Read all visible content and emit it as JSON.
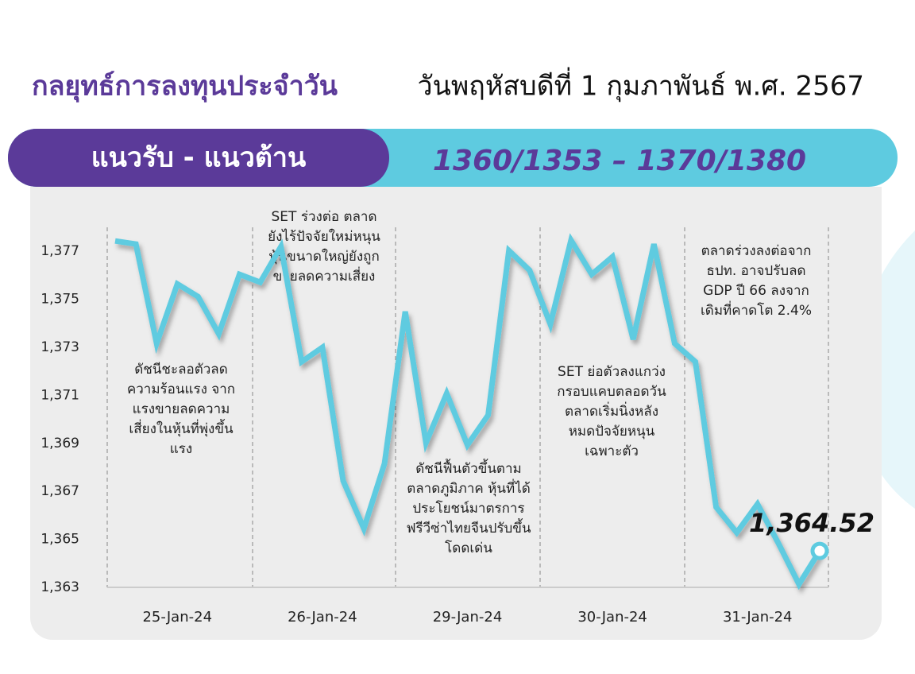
{
  "header": {
    "title": "กลยุทธ์การลงทุนประจำวัน",
    "date": "วันพฤหัสบดีที่ 1 กุมภาพันธ์ พ.ศ. 2567"
  },
  "banner": {
    "label": "แนวรับ - แนวต้าน",
    "levels": "1360/1353 – 1370/1380"
  },
  "chart_data": {
    "type": "line",
    "categories": [
      null,
      null,
      null,
      "25-Jan-24",
      null,
      null,
      null,
      null,
      null,
      null,
      "26-Jan-24",
      null,
      null,
      null,
      null,
      null,
      null,
      "29-Jan-24",
      null,
      null,
      null,
      null,
      null,
      null,
      "30-Jan-24",
      null,
      null,
      null,
      null,
      null,
      null,
      "31-Jan-24",
      null,
      null,
      null
    ],
    "series": [
      {
        "name": "SET",
        "color": "#5ecbe0",
        "values": [
          1377.43,
          1377.3,
          1373.16,
          1375.64,
          1375.11,
          1373.56,
          1376.04,
          1375.71,
          1377.2,
          1372.4,
          1373.0,
          1367.44,
          1365.45,
          1368.16,
          1374.49,
          1369.02,
          1371.08,
          1368.93,
          1370.18,
          1377.03,
          1376.21,
          1373.96,
          1377.46,
          1376.04,
          1376.77,
          1373.33,
          1377.3,
          1373.16,
          1372.4,
          1366.34,
          1365.28,
          1366.47,
          1364.85,
          1363.13,
          1364.52
        ],
        "value_labels": [
          null,
          null,
          null,
          null,
          null,
          null,
          null,
          null,
          null,
          null,
          null,
          null,
          null,
          null,
          null,
          null,
          null,
          null,
          null,
          null,
          null,
          null,
          null,
          null,
          null,
          null,
          null,
          null,
          null,
          null,
          null,
          null,
          null,
          null,
          "1,364.52"
        ]
      }
    ],
    "ylim": [
      1363,
      1378
    ],
    "yticks": [
      {
        "value": 1363,
        "label": "1,363"
      },
      {
        "value": 1365,
        "label": "1,365"
      },
      {
        "value": 1367,
        "label": "1,367"
      },
      {
        "value": 1369,
        "label": "1,369"
      },
      {
        "value": 1371,
        "label": "1,371"
      },
      {
        "value": 1373,
        "label": "1,373"
      },
      {
        "value": 1375,
        "label": "1,375"
      },
      {
        "value": 1377,
        "label": "1,377"
      }
    ],
    "annotations": [
      [
        "ดัชนีชะลอตัวลด",
        "ความร้อนแรง จาก",
        "แรงขายลดความ",
        "เสี่ยงในหุ้นที่พุ่งขึ้น",
        "แรง"
      ],
      [
        "SET ร่วงต่อ ตลาด",
        "ยังไร้ปัจจัยใหม่หนุน",
        "หุ้นขนาดใหญ่ยังถูก",
        "ขายลดความเสี่ยง"
      ],
      [
        "ดัชนีฟื้นตัวขึ้นตาม",
        "ตลาดภูมิภาค หุ้นที่ได้",
        "ประโยชน์มาตรการ",
        "ฟรีวีซ่าไทยจีนปรับขึ้น",
        "โดดเด่น"
      ],
      [
        "SET ย่อตัวลงแกว่ง",
        "กรอบแคบตลอดวัน",
        "ตลาดเริ่มนิ่งหลัง",
        "หมดปัจจัยหนุน",
        "เฉพาะตัว"
      ],
      [
        "ตลาดร่วงลงต่อจาก",
        "ธปท. อาจปรับลด",
        "GDP ปี 66 ลงจาก",
        "เดิมที่คาดโต 2.4%"
      ]
    ]
  }
}
